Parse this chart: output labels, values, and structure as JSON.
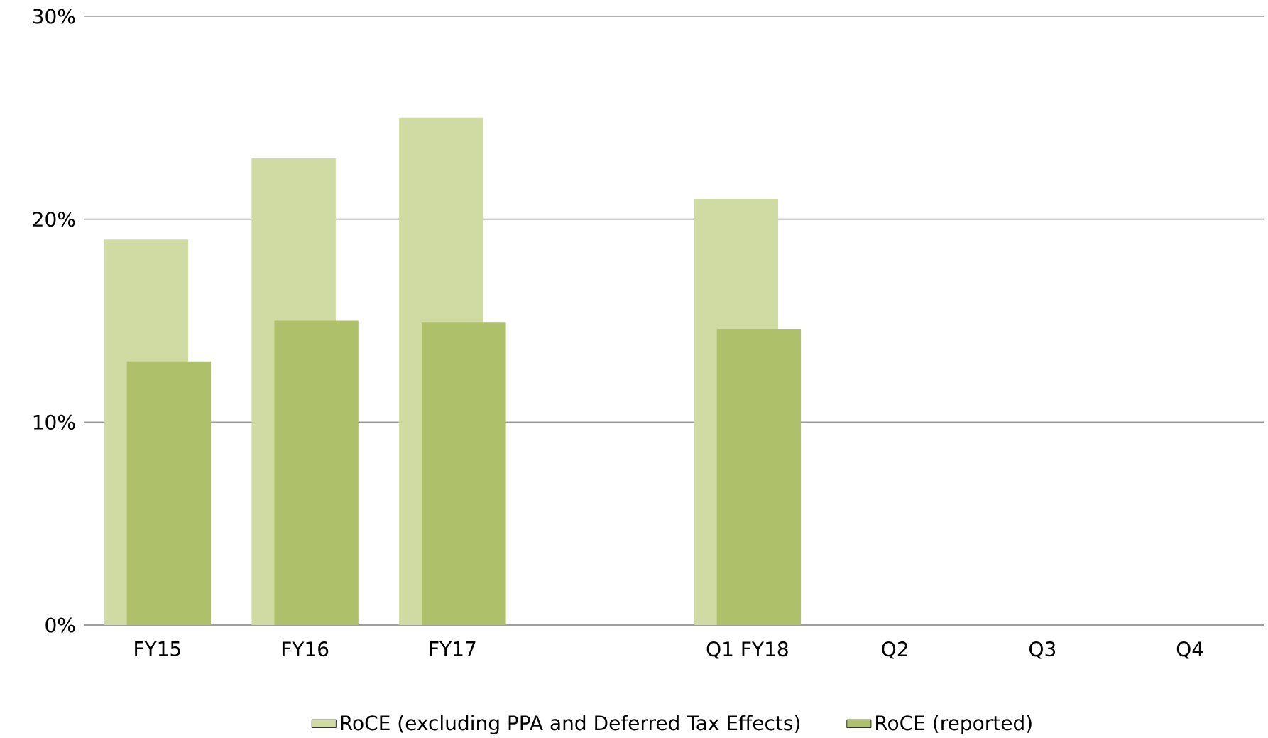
{
  "chart_data": {
    "type": "bar",
    "categories": [
      "FY15",
      "FY16",
      "FY17",
      null,
      "Q1 FY18",
      "Q2",
      "Q3",
      "Q4"
    ],
    "series": [
      {
        "name": "RoCE (excluding PPA and Deferred Tax Effects)",
        "color": "#d0daa3",
        "values": [
          19,
          23,
          25,
          null,
          21,
          null,
          null,
          null
        ]
      },
      {
        "name": "RoCE (reported)",
        "color": "#aec16a",
        "values": [
          13,
          15,
          14.9,
          null,
          14.6,
          null,
          null,
          null
        ]
      }
    ],
    "ylim": [
      0,
      30
    ],
    "yticks": [
      {
        "value": 0,
        "label": "0%"
      },
      {
        "value": 10,
        "label": "10%"
      },
      {
        "value": 20,
        "label": "20%"
      },
      {
        "value": 30,
        "label": "30%"
      }
    ],
    "grid": "y",
    "legend": "bottom"
  }
}
